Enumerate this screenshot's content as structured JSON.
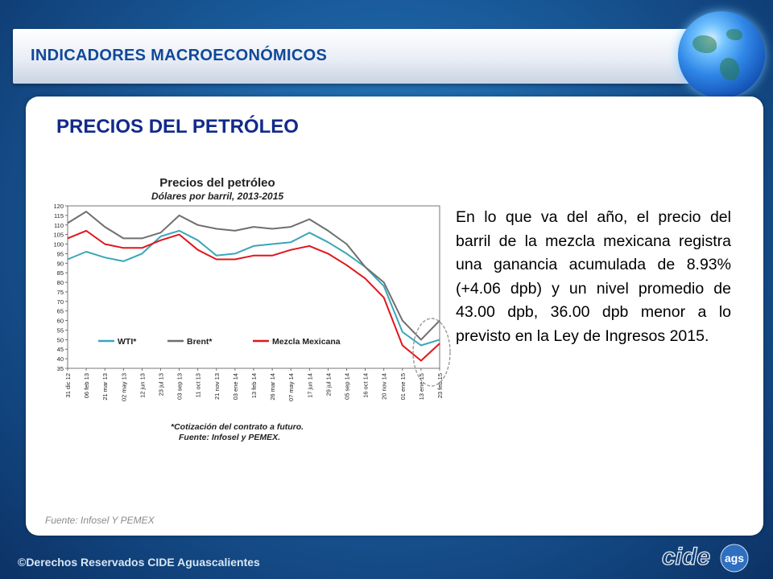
{
  "header": {
    "title": "INDICADORES MACROECONÓMICOS"
  },
  "section": {
    "title": "PRECIOS DEL PETRÓLEO"
  },
  "description": "En lo que va del año, el precio del barril de la mezcla mexicana registra una ganancia acumulada de 8.93% (+4.06 dpb) y un nivel promedio de 43.00 dpb, 36.00 dpb menor a lo previsto en la Ley de Ingresos 2015.",
  "source_note": "Fuente: Infosel Y PEMEX",
  "footer": {
    "copyright": "©Derechos Reservados CIDE Aguascalientes",
    "logo_text": "cide",
    "logo_suffix": "ags"
  },
  "colors": {
    "wti": "#3aa6b9",
    "brent": "#6f6f6f",
    "mezcla": "#e0161d",
    "title": "#122a8a",
    "header_text": "#10489a"
  },
  "chart_data": {
    "type": "line",
    "title": "Precios del petróleo",
    "subtitle": "Dólares por barril, 2013-2015",
    "ylim": [
      35,
      120
    ],
    "yticks": [
      35,
      40,
      45,
      50,
      55,
      60,
      65,
      70,
      75,
      80,
      85,
      90,
      95,
      100,
      105,
      110,
      115,
      120
    ],
    "x": [
      "31-dic-12",
      "06-feb-13",
      "21-mar-13",
      "02-may-13",
      "12-jun-13",
      "23-jul-13",
      "03-sep-13",
      "11-oct-13",
      "21-nov-13",
      "03-ene-14",
      "13-feb-14",
      "26-mar-14",
      "07-may-14",
      "17-jun-14",
      "29-jul-14",
      "05-sep-14",
      "16-oct-14",
      "20-nov-14",
      "01-ene-15",
      "13-ene-15",
      "23-feb-15"
    ],
    "xtick_labels": [
      "31 dic 12",
      "06 feb 13",
      "21 mar 13",
      "02 may 13",
      "12 jun 13",
      "23 jul 13",
      "03 sep 13",
      "11 oct 13",
      "21 nov 13",
      "03 ene 14",
      "13 feb 14",
      "26 mar 14",
      "07 may 14",
      "17 jun 14",
      "29 jul 14",
      "05 sep 14",
      "16 oct 14",
      "20 nov 14",
      "01 ene 15",
      "13 ene 15",
      "23 feb 15"
    ],
    "series": [
      {
        "name": "WTI*",
        "values": [
          92,
          96,
          93,
          91,
          95,
          104,
          107,
          102,
          94,
          95,
          99,
          100,
          101,
          106,
          101,
          95,
          88,
          78,
          54,
          47,
          50
        ]
      },
      {
        "name": "Brent*",
        "values": [
          111,
          117,
          109,
          103,
          103,
          106,
          115,
          110,
          108,
          107,
          109,
          108,
          109,
          113,
          107,
          100,
          88,
          80,
          60,
          50,
          60
        ]
      },
      {
        "name": "Mezcla Mexicana",
        "values": [
          103,
          107,
          100,
          98,
          98,
          102,
          105,
          97,
          92,
          92,
          94,
          94,
          97,
          99,
          95,
          89,
          82,
          72,
          47,
          39,
          48
        ]
      }
    ],
    "legend": "inside-bottom",
    "annotations": [
      "*Cotización del contrato a futuro.",
      "Fuente: Infosel y PEMEX."
    ],
    "grid": false
  }
}
